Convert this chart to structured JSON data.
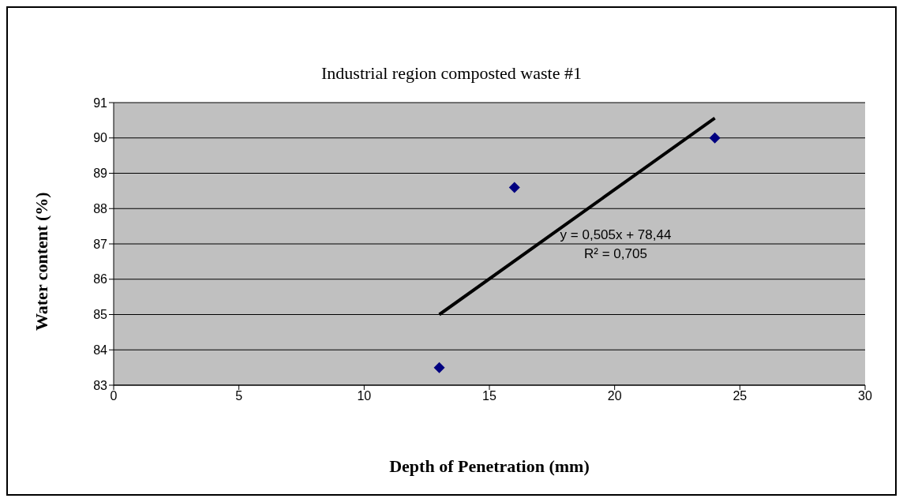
{
  "chart_data": {
    "type": "scatter",
    "title": "Industrial region composted waste #1",
    "xlabel": "Depth of Penetration (mm)",
    "ylabel": "Water content (%)",
    "series": [
      {
        "x": [
          13,
          16,
          24
        ],
        "values": [
          83.5,
          88.6,
          90.0
        ],
        "color": "#000080",
        "marker": "diamond"
      },
      {
        "type": "line",
        "x": [
          13,
          24
        ],
        "values": [
          85.0,
          90.56
        ],
        "color": "#000000",
        "marker": "none"
      }
    ],
    "annotations": [
      "y = 0,505x + 78,44",
      "R² = 0,705"
    ],
    "grid": "y",
    "legend": false,
    "xlim": [
      0,
      30
    ],
    "xticks": [
      0,
      5,
      10,
      15,
      20,
      25,
      30
    ],
    "ylim": [
      83,
      91
    ],
    "yticks": [
      83,
      84,
      85,
      86,
      87,
      88,
      89,
      90,
      91
    ]
  }
}
